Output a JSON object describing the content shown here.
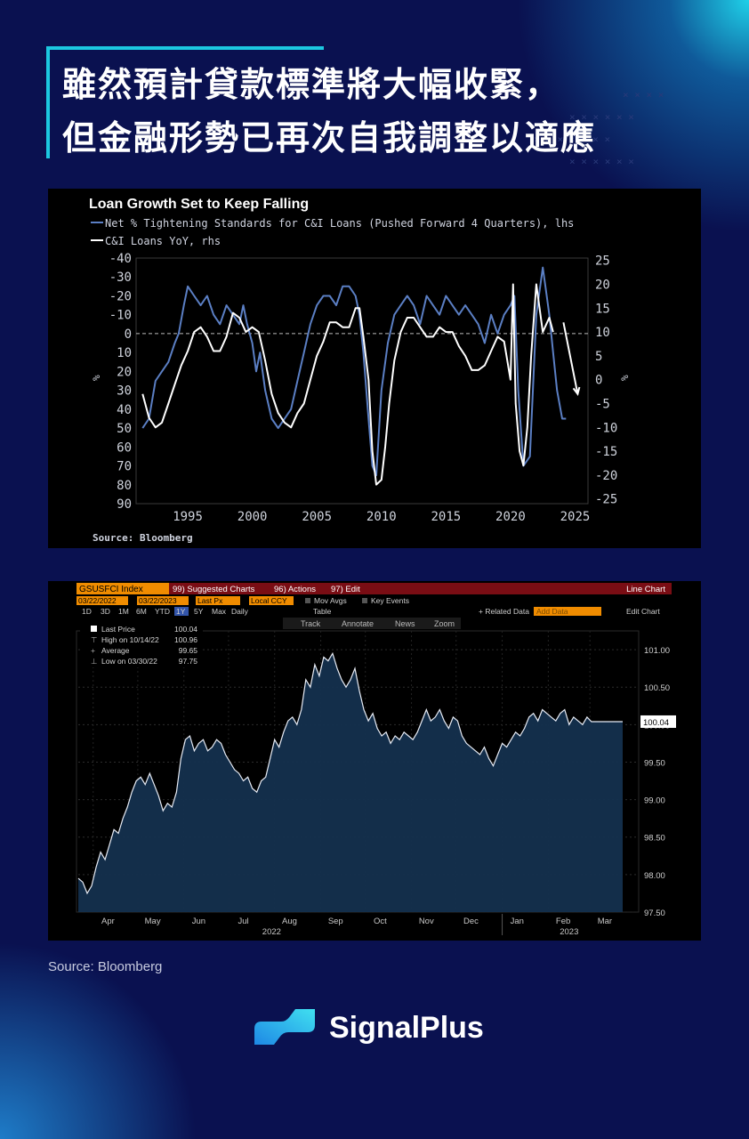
{
  "headline": {
    "line1": "雖然預計貸款標準將大幅收緊，",
    "line2": "但金融形勢已再次自我調整以適應"
  },
  "chart_data": [
    {
      "type": "line",
      "title": "Loan Growth Set to Keep Falling",
      "source": "Source: Bloomberg",
      "legend": [
        {
          "name": "Net % Tightening Standards for C&I Loans (Pushed Forward 4 Quarters), lhs",
          "color": "#5b7fc4"
        },
        {
          "name": "C&I Loans YoY, rhs",
          "color": "#ffffff"
        }
      ],
      "xlim": [
        1991,
        2026
      ],
      "x_ticks": [
        "1995",
        "2000",
        "2005",
        "2010",
        "2015",
        "2020",
        "2025"
      ],
      "ylim_left": [
        90,
        -40
      ],
      "ylim_right": [
        -26,
        25.5
      ],
      "left_ticks": [
        "-40",
        "-30",
        "-20",
        "-10",
        "0",
        "10",
        "20",
        "30",
        "40",
        "50",
        "60",
        "70",
        "80",
        "90"
      ],
      "right_ticks": [
        "25",
        "20",
        "15",
        "10",
        "5",
        "0",
        "-5",
        "-10",
        "-15",
        "-20",
        "-25"
      ],
      "left_axis_label": "%",
      "right_axis_label": "%",
      "zero_line": "dashed",
      "series": [
        {
          "name": "Net % Tightening Standards for C&I Loans (Pushed Forward 4 Quarters), lhs",
          "axis": "left",
          "color": "#5b7fc4",
          "x": [
            1991.5,
            1992,
            1992.5,
            1993,
            1993.5,
            1994,
            1994.3,
            1994.7,
            1995,
            1995.5,
            1996,
            1996.5,
            1997,
            1997.5,
            1998,
            1998.5,
            1999,
            1999.3,
            1999.6,
            2000,
            2000.3,
            2000.6,
            2001,
            2001.5,
            2002,
            2002.5,
            2003,
            2003.5,
            2004,
            2004.5,
            2005,
            2005.5,
            2006,
            2006.5,
            2007,
            2007.5,
            2008,
            2008.3,
            2008.6,
            2009,
            2009.3,
            2009.6,
            2010,
            2010.5,
            2011,
            2011.5,
            2012,
            2012.5,
            2013,
            2013.5,
            2014,
            2014.5,
            2015,
            2015.5,
            2016,
            2016.5,
            2017,
            2017.5,
            2018,
            2018.5,
            2019,
            2019.5,
            2020,
            2020.3,
            2020.6,
            2021,
            2021.5,
            2022,
            2022.5,
            2022.8,
            2023,
            2023.3,
            2023.6,
            2024,
            2024.3
          ],
          "y": [
            50,
            45,
            25,
            20,
            15,
            5,
            0,
            -15,
            -25,
            -20,
            -15,
            -20,
            -10,
            -5,
            -15,
            -10,
            -5,
            -15,
            -5,
            5,
            20,
            10,
            30,
            45,
            50,
            45,
            40,
            25,
            10,
            -5,
            -15,
            -20,
            -20,
            -15,
            -25,
            -25,
            -20,
            -10,
            10,
            45,
            70,
            75,
            30,
            5,
            -10,
            -15,
            -20,
            -15,
            -5,
            -20,
            -15,
            -10,
            -20,
            -15,
            -10,
            -15,
            -10,
            -5,
            5,
            -10,
            0,
            -10,
            -15,
            -20,
            30,
            70,
            65,
            -10,
            -35,
            -20,
            -10,
            10,
            30,
            45,
            45
          ]
        },
        {
          "name": "C&I Loans YoY, rhs",
          "axis": "right",
          "color": "#ffffff",
          "x": [
            1991.5,
            1992,
            1992.5,
            1993,
            1993.5,
            1994,
            1994.5,
            1995,
            1995.5,
            1996,
            1996.5,
            1997,
            1997.5,
            1998,
            1998.5,
            1999,
            1999.5,
            2000,
            2000.5,
            2001,
            2001.5,
            2002,
            2002.5,
            2003,
            2003.5,
            2004,
            2004.5,
            2005,
            2005.5,
            2006,
            2006.5,
            2007,
            2007.5,
            2008,
            2008.3,
            2008.6,
            2009,
            2009.3,
            2009.6,
            2010,
            2010.3,
            2010.6,
            2011,
            2011.5,
            2012,
            2012.5,
            2013,
            2013.5,
            2014,
            2014.5,
            2015,
            2015.5,
            2016,
            2016.5,
            2017,
            2017.5,
            2018,
            2018.5,
            2019,
            2019.5,
            2020,
            2020.2,
            2020.4,
            2020.7,
            2021,
            2021.3,
            2021.6,
            2022,
            2022.5,
            2023,
            2023.3
          ],
          "y": [
            -3,
            -8,
            -10,
            -9,
            -5,
            -1,
            3,
            6,
            10,
            11,
            9,
            6,
            6,
            9,
            14,
            13,
            10,
            11,
            10,
            4,
            -3,
            -7,
            -9,
            -10,
            -7,
            -5,
            0,
            5,
            8,
            12,
            12,
            11,
            11,
            15,
            15,
            9,
            0,
            -15,
            -22,
            -21,
            -14,
            -5,
            4,
            10,
            13,
            13,
            11,
            9,
            9,
            11,
            10,
            10,
            7,
            5,
            2,
            2,
            3,
            6,
            9,
            8,
            0,
            20,
            -5,
            -15,
            -18,
            -10,
            5,
            20,
            10,
            13,
            10
          ],
          "projection": {
            "x": [
              2024.1,
              2025.2
            ],
            "y": [
              12,
              -3
            ]
          }
        }
      ]
    },
    {
      "type": "area",
      "ticker": "GSUSFCI Index",
      "chart_kind": "Line Chart",
      "start_date": "03/22/2022",
      "end_date": "03/22/2023",
      "last_value": "100.04",
      "ylim": [
        97.5,
        101.25
      ],
      "y_ticks": [
        "101.00",
        "100.50",
        "100.00",
        "99.50",
        "99.00",
        "98.50",
        "98.00",
        "97.50"
      ],
      "x_months": [
        "Apr",
        "May",
        "Jun",
        "Jul",
        "Aug",
        "Sep",
        "Oct",
        "Nov",
        "Dec",
        "Jan",
        "Feb",
        "Mar"
      ],
      "x_years": [
        "2022",
        "2023"
      ],
      "stats": [
        {
          "label": "Last Price",
          "value": "100.04"
        },
        {
          "label": "High on 10/14/22",
          "value": "100.96"
        },
        {
          "label": "Average",
          "value": "99.65"
        },
        {
          "label": "Low on 03/30/22",
          "value": "97.75"
        }
      ],
      "series": [
        {
          "name": "GSUSFCI Index",
          "color": "#e8ecf5",
          "x": [
            0,
            3,
            6,
            9,
            12,
            15,
            18,
            21,
            24,
            27,
            30,
            33,
            36,
            39,
            42,
            45,
            48,
            51,
            54,
            57,
            60,
            63,
            66,
            69,
            72,
            75,
            78,
            81,
            84,
            87,
            90,
            93,
            96,
            99,
            102,
            105,
            108,
            111,
            114,
            117,
            120,
            123,
            126,
            129,
            132,
            135,
            138,
            141,
            144,
            147,
            150,
            153,
            156,
            159,
            162,
            165,
            168,
            171,
            174,
            177,
            180,
            183,
            186,
            189,
            192,
            195,
            198,
            201,
            204,
            207,
            210,
            213,
            216,
            219,
            222,
            225,
            228,
            231,
            234,
            237,
            240,
            243,
            246,
            249,
            252,
            255,
            258,
            261,
            264,
            267,
            270,
            273,
            276,
            279,
            282,
            285,
            288,
            291,
            294,
            297,
            300,
            303,
            306,
            309,
            312,
            315,
            318,
            321,
            324,
            327,
            330,
            333,
            336,
            339,
            342,
            345,
            348,
            351,
            354,
            357,
            360,
            363,
            366
          ],
          "y": [
            97.95,
            97.9,
            97.75,
            97.85,
            98.1,
            98.3,
            98.2,
            98.4,
            98.6,
            98.55,
            98.75,
            98.9,
            99.1,
            99.25,
            99.3,
            99.2,
            99.35,
            99.2,
            99.05,
            98.85,
            98.95,
            98.9,
            99.1,
            99.55,
            99.8,
            99.85,
            99.65,
            99.75,
            99.8,
            99.65,
            99.7,
            99.8,
            99.75,
            99.6,
            99.5,
            99.4,
            99.35,
            99.25,
            99.3,
            99.15,
            99.1,
            99.25,
            99.3,
            99.55,
            99.8,
            99.7,
            99.9,
            100.05,
            100.1,
            100.0,
            100.2,
            100.6,
            100.5,
            100.8,
            100.65,
            100.9,
            100.85,
            100.95,
            100.75,
            100.6,
            100.5,
            100.6,
            100.75,
            100.45,
            100.2,
            100.05,
            100.15,
            99.95,
            99.85,
            99.9,
            99.75,
            99.85,
            99.8,
            99.9,
            99.85,
            99.8,
            99.9,
            100.05,
            100.2,
            100.05,
            100.1,
            100.2,
            100.05,
            99.95,
            100.1,
            100.05,
            99.85,
            99.75,
            99.7,
            99.65,
            99.6,
            99.7,
            99.55,
            99.45,
            99.6,
            99.75,
            99.7,
            99.8,
            99.9,
            99.85,
            99.95,
            100.1,
            100.15,
            100.05,
            100.2,
            100.15,
            100.1,
            100.05,
            100.15,
            100.2,
            100.0,
            100.1,
            100.05,
            100.0,
            100.1,
            100.04,
            100.04,
            100.04,
            100.04,
            100.04,
            100.04,
            100.04,
            100.04
          ]
        }
      ]
    }
  ],
  "panel2": {
    "toolbar": {
      "suggested": "99) Suggested Charts",
      "actions": "96) Actions",
      "edit": "97) Edit",
      "last_px": "Last Px",
      "local_ccy": "Local CCY",
      "mov_avgs": "Mov Avgs",
      "key_events": "Key Events",
      "periods": [
        "1D",
        "3D",
        "1M",
        "6M",
        "YTD",
        "1Y",
        "5Y",
        "Max",
        "Daily"
      ],
      "table": "Table",
      "related": "+ Related Data",
      "add_data": "Add Data",
      "edit_chart": "Edit Chart",
      "track": "Track",
      "annotate": "Annotate",
      "news": "News",
      "zoom": "Zoom"
    }
  },
  "footer": {
    "source": "Source: Bloomberg",
    "brand": "SignalPlus"
  }
}
